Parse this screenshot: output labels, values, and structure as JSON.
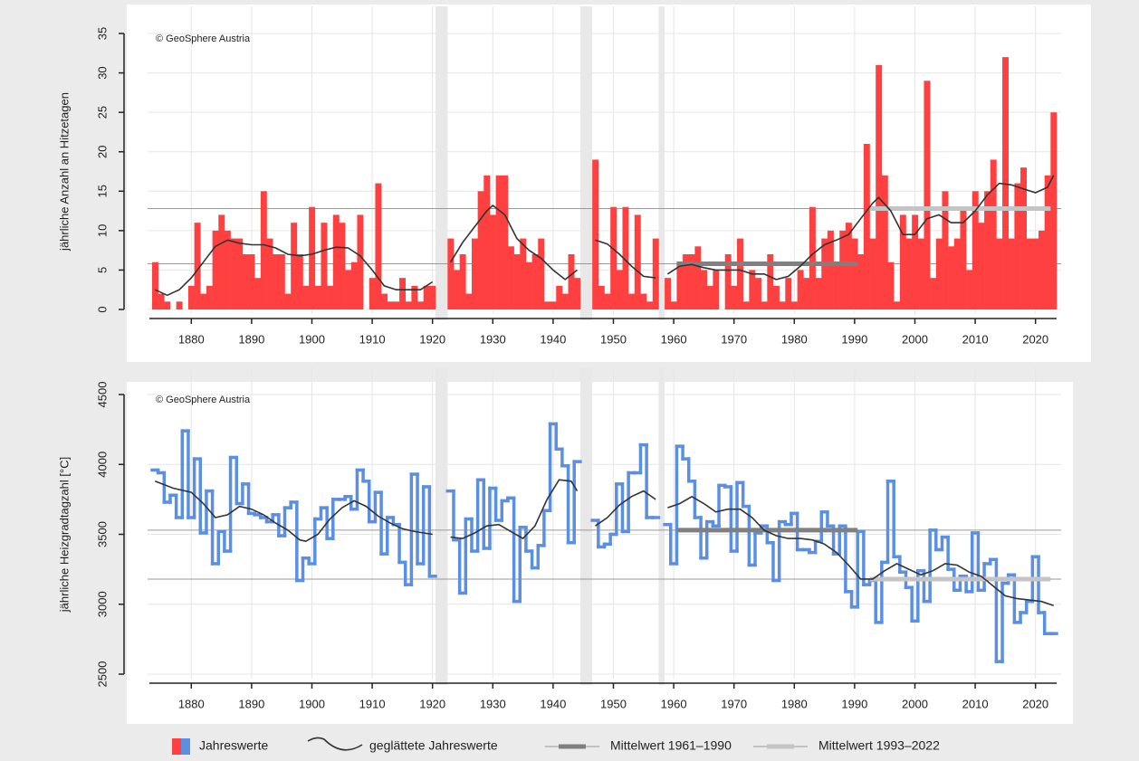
{
  "chart_data": [
    {
      "type": "bar",
      "ylabel": "jährliche Anzahl an Hitzetagen",
      "annotation": "© GeoSphere Austria",
      "xlim": [
        1873.5,
        2023.5
      ],
      "xticks": [
        1880,
        1890,
        1900,
        1910,
        1920,
        1930,
        1940,
        1950,
        1960,
        1970,
        1980,
        1990,
        2000,
        2010,
        2020
      ],
      "ylim": [
        0,
        35
      ],
      "yticks": [
        0,
        5,
        10,
        15,
        20,
        25,
        30,
        35
      ],
      "grid": true,
      "x": [
        1874,
        1875,
        1876,
        1877,
        1878,
        1879,
        1880,
        1881,
        1882,
        1883,
        1884,
        1885,
        1886,
        1887,
        1888,
        1889,
        1890,
        1891,
        1892,
        1893,
        1894,
        1895,
        1896,
        1897,
        1898,
        1899,
        1900,
        1901,
        1902,
        1903,
        1904,
        1905,
        1906,
        1907,
        1908,
        1909,
        1910,
        1911,
        1912,
        1913,
        1914,
        1915,
        1916,
        1917,
        1918,
        1919,
        1920,
        1921,
        1922,
        1923,
        1924,
        1925,
        1926,
        1927,
        1928,
        1929,
        1930,
        1931,
        1932,
        1933,
        1934,
        1935,
        1936,
        1937,
        1938,
        1939,
        1940,
        1941,
        1942,
        1943,
        1944,
        1945,
        1946,
        1947,
        1948,
        1949,
        1950,
        1951,
        1952,
        1953,
        1954,
        1955,
        1956,
        1957,
        1958,
        1959,
        1960,
        1961,
        1962,
        1963,
        1964,
        1965,
        1966,
        1967,
        1968,
        1969,
        1970,
        1971,
        1972,
        1973,
        1974,
        1975,
        1976,
        1977,
        1978,
        1979,
        1980,
        1981,
        1982,
        1983,
        1984,
        1985,
        1986,
        1987,
        1988,
        1989,
        1990,
        1991,
        1992,
        1993,
        1994,
        1995,
        1996,
        1997,
        1998,
        1999,
        2000,
        2001,
        2002,
        2003,
        2004,
        2005,
        2006,
        2007,
        2008,
        2009,
        2010,
        2011,
        2012,
        2013,
        2014,
        2015,
        2016,
        2017,
        2018,
        2019,
        2020,
        2021,
        2022,
        2023
      ],
      "series": [
        {
          "kind": "annual",
          "color": "#ff4040",
          "values": [
            6,
            2,
            1,
            0,
            1,
            0,
            3,
            11,
            2,
            3,
            10,
            12,
            10,
            9,
            9,
            7,
            7,
            4,
            15,
            9,
            7,
            7,
            2,
            11,
            7,
            3,
            13,
            3,
            11,
            3,
            12,
            11,
            5,
            6,
            12,
            0,
            4,
            16,
            2,
            1,
            1,
            4,
            1,
            3,
            1,
            3,
            3,
            null,
            null,
            9,
            5,
            7,
            2,
            9,
            15,
            17,
            12,
            17,
            17,
            8,
            7,
            9,
            6,
            7,
            9,
            1,
            1,
            3,
            2,
            7,
            4,
            null,
            null,
            19,
            3,
            2,
            13,
            5,
            13,
            2,
            12,
            2,
            1,
            9,
            null,
            4,
            1,
            6,
            7,
            7,
            8,
            5,
            3,
            5,
            0,
            7,
            3,
            9,
            1,
            5,
            4,
            1,
            7,
            3,
            1,
            4,
            1,
            5,
            4,
            13,
            4,
            9,
            10,
            6,
            10,
            11,
            9,
            7,
            21,
            9,
            31,
            17,
            6,
            1,
            12,
            9,
            12,
            9,
            29,
            4,
            9,
            15,
            8,
            9,
            13,
            5,
            15,
            11,
            15,
            19,
            9,
            32,
            9,
            16,
            18,
            9,
            9,
            10,
            17,
            25
          ]
        },
        {
          "kind": "smooth",
          "color": "#333333",
          "x": [
            1874,
            1876,
            1878,
            1880,
            1882,
            1884,
            1886,
            1888,
            1890,
            1892,
            1894,
            1896,
            1898,
            1900,
            1902,
            1904,
            1906,
            1908,
            1910,
            1912,
            1914,
            1916,
            1918,
            1920,
            1921,
            1923,
            1925,
            1927,
            1929,
            1930,
            1932,
            1934,
            1936,
            1938,
            1940,
            1942,
            1944,
            1945,
            1947,
            1949,
            1951,
            1953,
            1955,
            1957,
            1958,
            1959,
            1961,
            1963,
            1965,
            1967,
            1969,
            1971,
            1973,
            1975,
            1977,
            1979,
            1981,
            1983,
            1985,
            1987,
            1989,
            1991,
            1993,
            1994,
            1996,
            1998,
            2000,
            2002,
            2004,
            2006,
            2008,
            2010,
            2012,
            2014,
            2016,
            2018,
            2020,
            2022,
            2023
          ],
          "values": [
            2.5,
            1.8,
            2.5,
            4,
            6,
            8,
            8.8,
            8.4,
            8.2,
            8.2,
            7.8,
            7,
            6.8,
            7,
            7.5,
            7.9,
            7.8,
            6.8,
            5,
            3,
            2.5,
            2.5,
            2.5,
            3.5,
            null,
            6,
            8.5,
            10.5,
            12.5,
            13.2,
            12,
            9,
            7.5,
            6.5,
            5,
            3.8,
            5,
            null,
            8.8,
            8.3,
            7,
            5.5,
            4.2,
            4,
            null,
            4.5,
            5.5,
            5.7,
            5.3,
            5,
            5,
            5,
            4.5,
            4.5,
            3.8,
            4.2,
            5.5,
            7,
            8.2,
            8.8,
            9.5,
            11.5,
            13.5,
            14.2,
            12.5,
            9.5,
            9.5,
            11.5,
            12,
            11,
            11,
            12.5,
            14.5,
            16,
            15.8,
            15.3,
            14.8,
            15.5,
            17
          ]
        },
        {
          "kind": "mean",
          "color": "#808080",
          "value": 5.8,
          "period": [
            1961,
            1990
          ]
        },
        {
          "kind": "mean",
          "color": "#c4c4c4",
          "value": 12.8,
          "period": [
            1993,
            2022
          ]
        }
      ]
    },
    {
      "type": "step",
      "ylabel": "jährliche Heizgradtagzahl [°C]",
      "annotation": "© GeoSphere Austria",
      "xlim": [
        1873.5,
        2023.5
      ],
      "xticks": [
        1880,
        1890,
        1900,
        1910,
        1920,
        1930,
        1940,
        1950,
        1960,
        1970,
        1980,
        1990,
        2000,
        2010,
        2020
      ],
      "ylim": [
        2500,
        4500
      ],
      "yticks": [
        2500,
        3000,
        3500,
        4000,
        4500
      ],
      "grid": true,
      "x": [
        1874,
        1875,
        1876,
        1877,
        1878,
        1879,
        1880,
        1881,
        1882,
        1883,
        1884,
        1885,
        1886,
        1887,
        1888,
        1889,
        1890,
        1891,
        1892,
        1893,
        1894,
        1895,
        1896,
        1897,
        1898,
        1899,
        1900,
        1901,
        1902,
        1903,
        1904,
        1905,
        1906,
        1907,
        1908,
        1909,
        1910,
        1911,
        1912,
        1913,
        1914,
        1915,
        1916,
        1917,
        1918,
        1919,
        1920,
        1921,
        1922,
        1923,
        1924,
        1925,
        1926,
        1927,
        1928,
        1929,
        1930,
        1931,
        1932,
        1933,
        1934,
        1935,
        1936,
        1937,
        1938,
        1939,
        1940,
        1941,
        1942,
        1943,
        1944,
        1945,
        1946,
        1947,
        1948,
        1949,
        1950,
        1951,
        1952,
        1953,
        1954,
        1955,
        1956,
        1957,
        1958,
        1959,
        1960,
        1961,
        1962,
        1963,
        1964,
        1965,
        1966,
        1967,
        1968,
        1969,
        1970,
        1971,
        1972,
        1973,
        1974,
        1975,
        1976,
        1977,
        1978,
        1979,
        1980,
        1981,
        1982,
        1983,
        1984,
        1985,
        1986,
        1987,
        1988,
        1989,
        1990,
        1991,
        1992,
        1993,
        1994,
        1995,
        1996,
        1997,
        1998,
        1999,
        2000,
        2001,
        2002,
        2003,
        2004,
        2005,
        2006,
        2007,
        2008,
        2009,
        2010,
        2011,
        2012,
        2013,
        2014,
        2015,
        2016,
        2017,
        2018,
        2019,
        2020,
        2021,
        2022,
        2023
      ],
      "series": [
        {
          "kind": "annual",
          "name": "Jahreswerte",
          "color": "#5b8fe3",
          "values": [
            3960,
            3940,
            3730,
            3780,
            3620,
            4240,
            3620,
            4040,
            3510,
            3810,
            3290,
            3520,
            3380,
            4050,
            3720,
            3860,
            3650,
            3640,
            3620,
            3590,
            3640,
            3490,
            3690,
            3730,
            3170,
            3330,
            3290,
            3610,
            3690,
            3470,
            3750,
            3750,
            3770,
            3680,
            3960,
            3880,
            3590,
            3800,
            3360,
            3620,
            3570,
            3300,
            3140,
            3930,
            3290,
            3840,
            3200,
            null,
            null,
            3810,
            3460,
            3080,
            3610,
            3380,
            3890,
            3400,
            3830,
            3600,
            3740,
            3760,
            3020,
            3550,
            3380,
            3260,
            3420,
            3670,
            4290,
            4110,
            3990,
            3440,
            4020,
            null,
            null,
            3600,
            3410,
            3430,
            3500,
            3860,
            3520,
            3940,
            3940,
            4140,
            3620,
            3620,
            null,
            3570,
            3290,
            4130,
            4040,
            3880,
            3620,
            3330,
            3590,
            3560,
            3850,
            3840,
            3380,
            3870,
            3700,
            3280,
            3510,
            3560,
            3440,
            3170,
            3590,
            3570,
            3650,
            3390,
            3390,
            3370,
            3450,
            3660,
            3560,
            3360,
            3560,
            3090,
            2980,
            3520,
            3140,
            3170,
            2870,
            3300,
            3880,
            3340,
            3230,
            3120,
            2880,
            3240,
            3020,
            3530,
            3390,
            3480,
            3250,
            3100,
            3200,
            3090,
            3510,
            3100,
            3290,
            3320,
            2590,
            3150,
            3210,
            2870,
            2940,
            3020,
            3340,
            2940,
            2790,
            2790
          ]
        },
        {
          "kind": "smooth",
          "name": "geglättete Jahreswerte",
          "color": "#333333",
          "x": [
            1874,
            1877,
            1880,
            1882,
            1884,
            1886,
            1888,
            1890,
            1892,
            1894,
            1896,
            1898,
            1899,
            1901,
            1903,
            1905,
            1907,
            1909,
            1911,
            1913,
            1915,
            1917,
            1920,
            1921,
            1923,
            1925,
            1927,
            1929,
            1931,
            1933,
            1935,
            1937,
            1939,
            1941,
            1943,
            1944,
            1945,
            1947,
            1949,
            1951,
            1953,
            1955,
            1957,
            1958,
            1959,
            1961,
            1963,
            1965,
            1967,
            1969,
            1971,
            1973,
            1975,
            1977,
            1979,
            1981,
            1983,
            1985,
            1987,
            1989,
            1991,
            1993,
            1995,
            1997,
            1999,
            2001,
            2003,
            2005,
            2007,
            2009,
            2011,
            2013,
            2015,
            2017,
            2019,
            2021,
            2023
          ],
          "values": [
            3880,
            3830,
            3800,
            3720,
            3620,
            3640,
            3700,
            3680,
            3640,
            3580,
            3530,
            3460,
            3450,
            3500,
            3610,
            3690,
            3740,
            3700,
            3630,
            3580,
            3540,
            3520,
            3500,
            null,
            3480,
            3470,
            3510,
            3560,
            3570,
            3520,
            3470,
            3560,
            3750,
            3890,
            3880,
            3810,
            null,
            3560,
            3620,
            3710,
            3770,
            3810,
            3750,
            null,
            3690,
            3720,
            3770,
            3720,
            3660,
            3680,
            3680,
            3620,
            3530,
            3490,
            3470,
            3470,
            3460,
            3430,
            3370,
            3280,
            3180,
            3180,
            3240,
            3290,
            3250,
            3210,
            3240,
            3290,
            3280,
            3230,
            3200,
            3130,
            3060,
            3040,
            3030,
            3020,
            2990
          ]
        },
        {
          "kind": "mean",
          "name": "Mittelwert 1961–1990",
          "color": "#808080",
          "value": 3530,
          "period": [
            1961,
            1990
          ]
        },
        {
          "kind": "mean",
          "name": "Mittelwert 1993–2022",
          "color": "#c4c4c4",
          "value": 3180,
          "period": [
            1993,
            2022
          ]
        }
      ]
    }
  ]
}
